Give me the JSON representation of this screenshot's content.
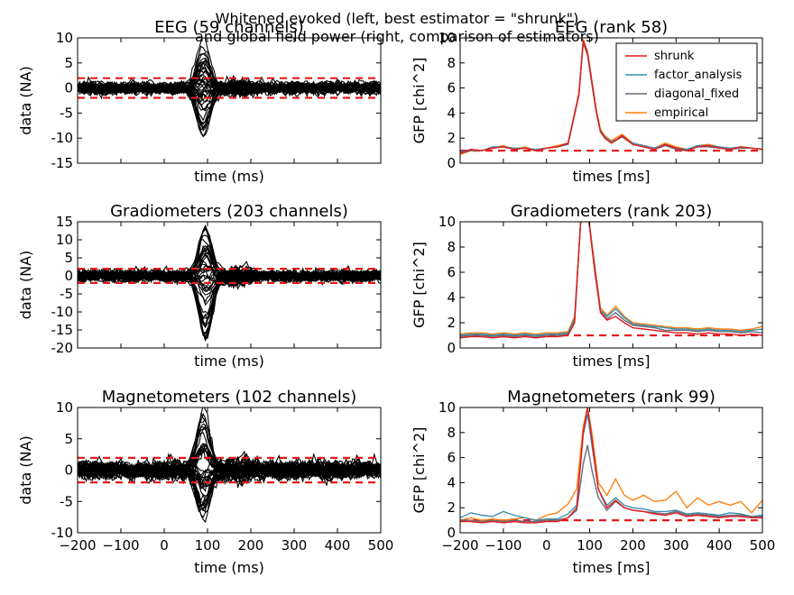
{
  "suptitle": {
    "line1": "Whitened evoked (left, best estimator = \"shrunk\")",
    "line2": "and global field power (right, comparison of estimators)"
  },
  "colors": {
    "trace": "#000000",
    "threshold": "#e41a1c",
    "shrunk": "#e41a1c",
    "factor_analysis": "#3b8fb0",
    "diagonal_fixed": "#6b6b7a",
    "empirical": "#ff7f0e"
  },
  "chart_data": [
    {
      "id": "eeg-evoked",
      "type": "line",
      "title": "EEG (59 channels)",
      "xlabel": "time (ms)",
      "ylabel": "data (NA)",
      "xlim": [
        -200,
        500
      ],
      "ylim": [
        -15,
        10
      ],
      "yticks": [
        -15,
        -10,
        -5,
        0,
        5,
        10
      ],
      "xticks": [
        -200,
        -100,
        0,
        100,
        200,
        300,
        400,
        500
      ],
      "show_xticklabels": false,
      "n_channels": 59,
      "noise_band": 1.8,
      "peak": {
        "x": 90,
        "max": 10.5,
        "min": -10
      },
      "threshold_lines": [
        -1.96,
        1.96
      ]
    },
    {
      "id": "eeg-gfp",
      "type": "line",
      "title": "EEG (rank 58)",
      "xlabel": "times [ms]",
      "ylabel": "GFP [chi^2]",
      "xlim": [
        -200,
        500
      ],
      "ylim": [
        0,
        10
      ],
      "yticks": [
        0,
        2,
        4,
        6,
        8,
        10
      ],
      "xticks": [
        -200,
        -100,
        0,
        100,
        200,
        300,
        400,
        500
      ],
      "show_xticklabels": false,
      "threshold": 1,
      "legend": {
        "placement": "top-right",
        "entries": [
          "shrunk",
          "factor_analysis",
          "diagonal_fixed",
          "empirical"
        ]
      },
      "x": [
        -200,
        -175,
        -150,
        -125,
        -100,
        -75,
        -50,
        -25,
        0,
        25,
        50,
        75,
        85,
        95,
        105,
        115,
        125,
        135,
        150,
        175,
        200,
        225,
        250,
        275,
        300,
        325,
        350,
        375,
        400,
        425,
        450,
        475,
        500
      ],
      "series": [
        {
          "name": "shrunk",
          "color_key": "shrunk",
          "values": [
            0.8,
            1.1,
            1.0,
            1.2,
            1.3,
            1.1,
            1.2,
            1.0,
            1.2,
            1.3,
            1.6,
            5.5,
            9.8,
            8.8,
            6.5,
            4.2,
            2.5,
            2.0,
            1.6,
            2.2,
            1.5,
            1.3,
            1.1,
            1.5,
            1.2,
            1.0,
            1.3,
            1.4,
            1.2,
            1.1,
            1.3,
            1.2,
            1.1
          ]
        },
        {
          "name": "factor_analysis",
          "color_key": "factor_analysis",
          "values": [
            0.9,
            1.1,
            1.0,
            1.3,
            1.3,
            1.2,
            1.2,
            1.1,
            1.2,
            1.3,
            1.6,
            5.5,
            9.7,
            8.7,
            6.4,
            4.1,
            2.6,
            2.1,
            1.7,
            2.1,
            1.6,
            1.4,
            1.2,
            1.5,
            1.2,
            1.1,
            1.4,
            1.4,
            1.3,
            1.2,
            1.3,
            1.2,
            1.1
          ]
        },
        {
          "name": "diagonal_fixed",
          "color_key": "diagonal_fixed",
          "values": [
            0.8,
            1.0,
            1.0,
            1.2,
            1.3,
            1.1,
            1.2,
            1.0,
            1.2,
            1.3,
            1.5,
            5.4,
            9.6,
            8.6,
            6.3,
            4.1,
            2.5,
            2.0,
            1.6,
            2.1,
            1.5,
            1.3,
            1.1,
            1.4,
            1.1,
            1.0,
            1.3,
            1.3,
            1.2,
            1.1,
            1.2,
            1.2,
            1.1
          ]
        },
        {
          "name": "empirical",
          "color_key": "empirical",
          "values": [
            0.7,
            1.0,
            1.0,
            1.2,
            1.4,
            1.1,
            1.3,
            1.0,
            1.2,
            1.4,
            1.6,
            5.6,
            9.9,
            8.9,
            6.6,
            4.3,
            2.7,
            2.2,
            1.8,
            2.3,
            1.6,
            1.4,
            1.2,
            1.6,
            1.3,
            1.1,
            1.4,
            1.5,
            1.3,
            1.1,
            1.3,
            1.2,
            1.1
          ]
        }
      ]
    },
    {
      "id": "grad-evoked",
      "type": "line",
      "title": "Gradiometers (203 channels)",
      "xlabel": "time (ms)",
      "ylabel": "data (NA)",
      "xlim": [
        -200,
        500
      ],
      "ylim": [
        -20,
        15
      ],
      "yticks": [
        -20,
        -15,
        -10,
        -5,
        0,
        5,
        10,
        15
      ],
      "xticks": [
        -200,
        -100,
        0,
        100,
        200,
        300,
        400,
        500
      ],
      "show_xticklabels": false,
      "n_channels": 203,
      "noise_band": 2.5,
      "peak": {
        "x": 95,
        "max": 13,
        "min": -18
      },
      "threshold_lines": [
        -1.96,
        1.96
      ]
    },
    {
      "id": "grad-gfp",
      "type": "line",
      "title": "Gradiometers (rank 203)",
      "xlabel": "times [ms]",
      "ylabel": "GFP [chi^2]",
      "xlim": [
        -200,
        500
      ],
      "ylim": [
        0,
        10
      ],
      "yticks": [
        0,
        2,
        4,
        6,
        8,
        10
      ],
      "xticks": [
        -200,
        -100,
        0,
        100,
        200,
        300,
        400,
        500
      ],
      "show_xticklabels": false,
      "threshold": 1,
      "x": [
        -200,
        -175,
        -150,
        -125,
        -100,
        -75,
        -50,
        -25,
        0,
        25,
        50,
        65,
        80,
        95,
        110,
        125,
        140,
        160,
        180,
        200,
        225,
        250,
        275,
        300,
        325,
        350,
        375,
        400,
        425,
        450,
        475,
        500
      ],
      "series": [
        {
          "name": "shrunk",
          "color_key": "shrunk",
          "values": [
            0.8,
            0.9,
            0.9,
            0.8,
            0.9,
            0.8,
            0.9,
            0.8,
            0.9,
            0.9,
            1.0,
            2.0,
            10.5,
            11,
            6.5,
            2.8,
            2.2,
            2.5,
            2.0,
            1.6,
            1.5,
            1.4,
            1.3,
            1.2,
            1.2,
            1.1,
            1.2,
            1.1,
            1.1,
            1.0,
            1.1,
            1.0
          ]
        },
        {
          "name": "factor_analysis",
          "color_key": "factor_analysis",
          "values": [
            1.0,
            1.1,
            1.1,
            1.0,
            1.1,
            1.0,
            1.1,
            1.0,
            1.1,
            1.1,
            1.2,
            2.3,
            10.5,
            11,
            6.8,
            3.0,
            2.5,
            3.1,
            2.4,
            1.9,
            1.8,
            1.7,
            1.6,
            1.5,
            1.5,
            1.4,
            1.5,
            1.4,
            1.4,
            1.3,
            1.4,
            1.5
          ]
        },
        {
          "name": "diagonal_fixed",
          "color_key": "diagonal_fixed",
          "values": [
            0.9,
            1.0,
            1.0,
            0.9,
            1.0,
            0.9,
            1.0,
            0.9,
            1.0,
            1.0,
            1.1,
            2.1,
            10.5,
            11,
            6.6,
            2.9,
            2.3,
            2.8,
            2.2,
            1.8,
            1.7,
            1.6,
            1.4,
            1.4,
            1.4,
            1.3,
            1.4,
            1.3,
            1.3,
            1.2,
            1.3,
            1.2
          ]
        },
        {
          "name": "empirical",
          "color_key": "empirical",
          "values": [
            1.1,
            1.2,
            1.2,
            1.1,
            1.2,
            1.1,
            1.2,
            1.1,
            1.2,
            1.2,
            1.3,
            2.5,
            10.5,
            11,
            7.0,
            3.2,
            2.6,
            3.3,
            2.5,
            2.0,
            1.9,
            1.8,
            1.7,
            1.6,
            1.6,
            1.5,
            1.6,
            1.5,
            1.5,
            1.4,
            1.5,
            1.7
          ]
        }
      ]
    },
    {
      "id": "mag-evoked",
      "type": "line",
      "title": "Magnetometers (102 channels)",
      "xlabel": "time (ms)",
      "ylabel": "data (NA)",
      "xlim": [
        -200,
        500
      ],
      "ylim": [
        -10,
        10
      ],
      "yticks": [
        -10,
        -5,
        0,
        5,
        10
      ],
      "xticks": [
        -200,
        -100,
        0,
        100,
        200,
        300,
        400,
        500
      ],
      "show_xticklabels": true,
      "n_channels": 102,
      "noise_band": 2.2,
      "peak": {
        "x": 90,
        "max": 9.3,
        "min": -8.5
      },
      "threshold_lines": [
        -1.96,
        1.96
      ]
    },
    {
      "id": "mag-gfp",
      "type": "line",
      "title": "Magnetometers (rank 99)",
      "xlabel": "times [ms]",
      "ylabel": "GFP [chi^2]",
      "xlim": [
        -200,
        500
      ],
      "ylim": [
        0,
        10
      ],
      "yticks": [
        0,
        2,
        4,
        6,
        8,
        10
      ],
      "xticks": [
        -200,
        -100,
        0,
        100,
        200,
        300,
        400,
        500
      ],
      "show_xticklabels": true,
      "threshold": 1,
      "x": [
        -200,
        -175,
        -150,
        -125,
        -100,
        -75,
        -50,
        -25,
        0,
        25,
        50,
        70,
        85,
        95,
        105,
        120,
        140,
        160,
        180,
        200,
        225,
        250,
        275,
        300,
        325,
        350,
        375,
        400,
        425,
        450,
        475,
        500
      ],
      "series": [
        {
          "name": "shrunk",
          "color_key": "shrunk",
          "values": [
            0.9,
            0.9,
            0.8,
            0.9,
            0.8,
            0.9,
            0.8,
            0.8,
            0.9,
            0.9,
            1.2,
            2.0,
            8.0,
            10.0,
            7.5,
            3.5,
            2.0,
            2.6,
            2.0,
            1.8,
            1.7,
            1.5,
            1.4,
            1.6,
            1.3,
            1.4,
            1.3,
            1.2,
            1.3,
            1.3,
            1.2,
            1.2
          ]
        },
        {
          "name": "factor_analysis",
          "color_key": "factor_analysis",
          "values": [
            1.2,
            1.6,
            1.4,
            1.3,
            1.7,
            1.4,
            1.2,
            1.0,
            1.1,
            1.1,
            1.5,
            2.2,
            7.8,
            9.5,
            7.0,
            3.5,
            2.2,
            2.8,
            2.2,
            2.0,
            1.9,
            1.7,
            1.7,
            1.8,
            1.5,
            1.6,
            1.5,
            1.4,
            1.6,
            1.5,
            1.3,
            1.4
          ]
        },
        {
          "name": "diagonal_fixed",
          "color_key": "diagonal_fixed",
          "values": [
            1.0,
            1.0,
            0.9,
            1.0,
            0.9,
            1.0,
            0.9,
            0.9,
            1.0,
            1.0,
            1.2,
            1.8,
            5.5,
            7.0,
            5.0,
            2.8,
            1.8,
            2.5,
            2.0,
            1.8,
            1.7,
            1.6,
            1.5,
            1.7,
            1.4,
            1.5,
            1.4,
            1.3,
            1.4,
            1.4,
            1.3,
            1.3
          ]
        },
        {
          "name": "empirical",
          "color_key": "empirical",
          "values": [
            1.0,
            1.2,
            1.0,
            1.1,
            1.0,
            1.1,
            1.2,
            1.0,
            1.4,
            1.6,
            2.3,
            3.5,
            8.5,
            10.0,
            8.0,
            4.0,
            3.0,
            4.3,
            3.0,
            2.6,
            3.0,
            2.5,
            2.6,
            3.3,
            2.0,
            2.8,
            2.2,
            2.5,
            2.2,
            2.5,
            1.6,
            2.6
          ]
        }
      ]
    }
  ]
}
